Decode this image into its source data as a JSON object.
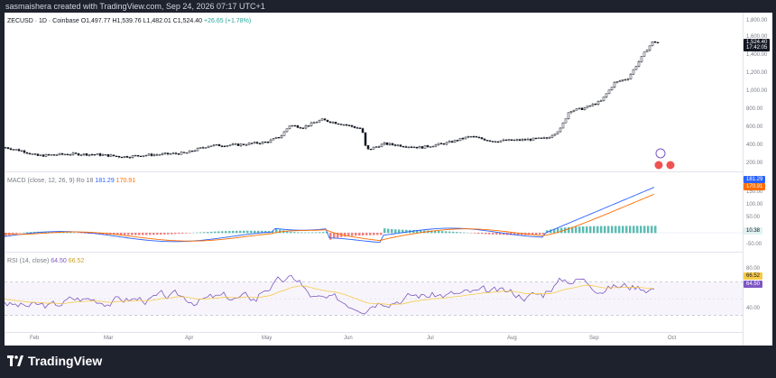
{
  "watermark": "sasmaishera created with TradingView.com, Sep 24, 2026 07:17 UTC+1",
  "price_pane": {
    "symbol": "ZECUSD · 1D · Coinbase",
    "ohlc": {
      "o": "O1,497.77",
      "h": "H1,539.76",
      "l": "L1,482.01",
      "c": "C1,524.40",
      "chg": "+26.65 (+1.78%)"
    },
    "last_price": "1,524.40",
    "countdown": "17:42:05",
    "y_ticks": [
      "1,800.00",
      "1,600.00",
      "1,400.00",
      "1,200.00",
      "1,000.00",
      "800.00",
      "600.00",
      "400.00",
      "200.00"
    ]
  },
  "macd_pane": {
    "label": "MACD (close, 12, 26, 9)",
    "extra": "Ro 18",
    "macd_value": "181.29",
    "signal_value": "170.91",
    "hist_value": "10.38",
    "y_ticks": [
      "150.00",
      "100.00",
      "50.00",
      "0.00",
      "-50.00"
    ]
  },
  "rsi_pane": {
    "label": "RSI (14, close)",
    "rsi_value": "64.50",
    "ma_value": "66.52",
    "y_ticks": [
      "80.00",
      "40.00"
    ]
  },
  "x_ticks": [
    "Feb",
    "Mar",
    "Apr",
    "May",
    "Jun",
    "Jul",
    "Aug",
    "Sep",
    "Oct"
  ],
  "footer": {
    "brand": "TradingView"
  },
  "colors": {
    "up": "#26a69a",
    "down": "#ef5350",
    "macd": "#2962ff",
    "signal": "#ff6d00",
    "rsi": "#7e57c2",
    "rsi_ma": "#f7c948"
  },
  "chart_data": {
    "type": "line",
    "title": "ZECUSD · 1D · Coinbase",
    "x": [
      "Feb",
      "Mar",
      "Apr",
      "May",
      "Jun",
      "Jul",
      "Aug",
      "Sep"
    ],
    "series": [
      {
        "name": "ZECUSD",
        "values": [
          400,
          330,
          360,
          650,
          500,
          470,
          540,
          1500
        ]
      }
    ],
    "ylim": [
      200,
      1800
    ]
  }
}
